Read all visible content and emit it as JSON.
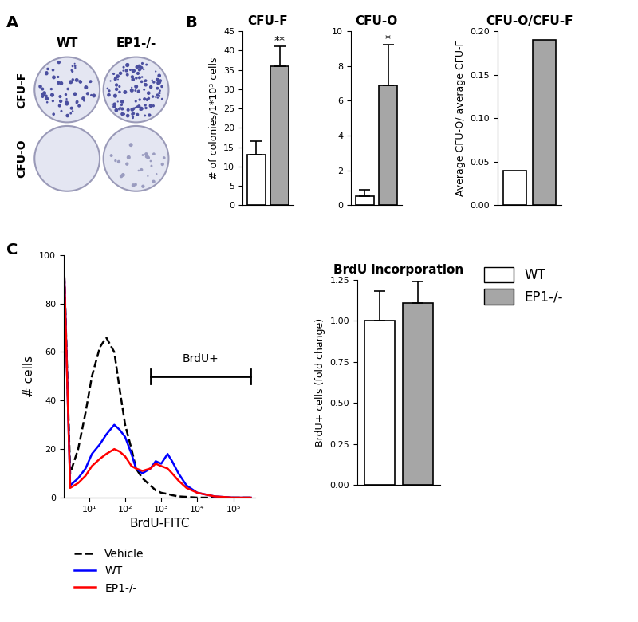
{
  "panel_labels": [
    "A",
    "B",
    "C"
  ],
  "legend_entries": [
    {
      "name": "WT",
      "color": "#ffffff"
    },
    {
      "name": "EP1-/-",
      "color": "#a6a6a6"
    }
  ],
  "image_panel": {
    "columns": [
      "WT",
      "EP1-/-"
    ],
    "rows": [
      "CFU-F",
      "CFU-O"
    ]
  },
  "chart_data": [
    {
      "type": "bar",
      "title": "CFU-F",
      "ylabel": "# of colonies/1*10³ cells",
      "categories": [
        null,
        null
      ],
      "values": [
        13,
        36
      ],
      "errors": [
        3.5,
        5
      ],
      "significance": [
        null,
        "**"
      ],
      "colors": [
        "#ffffff",
        "#a6a6a6"
      ],
      "ylim": [
        0,
        45
      ],
      "yticks": [
        0,
        5,
        10,
        15,
        20,
        25,
        30,
        35,
        40,
        45
      ]
    },
    {
      "type": "bar",
      "title": "CFU-O",
      "categories": [
        null,
        null
      ],
      "values": [
        0.5,
        6.9
      ],
      "errors": [
        0.4,
        2.3
      ],
      "significance": [
        null,
        "*"
      ],
      "colors": [
        "#ffffff",
        "#a6a6a6"
      ],
      "ylim": [
        0,
        10
      ],
      "yticks": [
        0,
        2,
        4,
        6,
        8,
        10
      ]
    },
    {
      "type": "bar",
      "title": "CFU-O/CFU-F",
      "ylabel": "Average CFU-O/ average CFU-F",
      "categories": [
        null,
        null
      ],
      "values": [
        0.04,
        0.19
      ],
      "colors": [
        "#ffffff",
        "#a6a6a6"
      ],
      "ylim": [
        0,
        0.2
      ],
      "yticks": [
        {
          "value": 0,
          "label": "0.00"
        },
        {
          "value": 0.05,
          "label": "0.05"
        },
        {
          "value": 0.1,
          "label": "0.10"
        },
        {
          "value": 0.15,
          "label": "0.15"
        },
        {
          "value": 0.2,
          "label": "0.20"
        }
      ]
    },
    {
      "type": "line",
      "xlabel": "BrdU-FITC",
      "ylabel": "# cells",
      "log": "x",
      "x": [
        2,
        3,
        5,
        8,
        12,
        20,
        30,
        50,
        70,
        100,
        150,
        200,
        300,
        500,
        700,
        1000,
        1500,
        2000,
        3000,
        5000,
        10000,
        30000,
        100000,
        300000
      ],
      "series": [
        {
          "name": "Vehicle",
          "color": "#000000",
          "line_style": "dashed",
          "values": [
            100,
            10,
            20,
            35,
            50,
            62,
            66,
            60,
            45,
            30,
            20,
            12,
            8,
            5,
            3,
            2,
            1.5,
            1,
            0.5,
            0.3,
            0,
            0,
            0,
            0
          ]
        },
        {
          "name": "WT",
          "color": "#0000ff",
          "line_style": "solid",
          "values": [
            100,
            5,
            8,
            12,
            18,
            22,
            26,
            30,
            28,
            25,
            18,
            12,
            10,
            12,
            15,
            14,
            18,
            15,
            10,
            5,
            2,
            0.5,
            0,
            0
          ]
        },
        {
          "name": "EP1-/-",
          "color": "#ff0000",
          "line_style": "solid",
          "values": [
            100,
            4,
            6,
            9,
            13,
            16,
            18,
            20,
            19,
            17,
            13,
            12,
            11,
            12,
            14,
            13,
            12,
            10,
            7,
            4,
            2,
            0.5,
            0,
            0
          ]
        }
      ],
      "xlim": [
        2,
        400000
      ],
      "xticks": [
        {
          "value": 10,
          "label": "10¹"
        },
        {
          "value": 100,
          "label": "10²"
        },
        {
          "value": 1000,
          "label": "10³"
        },
        {
          "value": 10000,
          "label": "10⁴"
        },
        {
          "value": 100000,
          "label": "10⁵"
        }
      ],
      "ylim": [
        0,
        100
      ],
      "yticks": [
        0,
        20,
        40,
        60,
        80,
        100
      ],
      "legend": "upper left",
      "annotations": [
        {
          "text": "BrdU+",
          "x_range": [
            500,
            300000
          ],
          "y": 50
        }
      ]
    },
    {
      "type": "bar",
      "title": "BrdU incorporation",
      "ylabel": "BrdU+ cells (fold change)",
      "categories": [
        null,
        null
      ],
      "values": [
        1.0,
        1.11
      ],
      "errors": [
        0.18,
        0.13
      ],
      "colors": [
        "#ffffff",
        "#a6a6a6"
      ],
      "ylim": [
        0,
        1.25
      ],
      "yticks": [
        {
          "value": 0,
          "label": "0.00"
        },
        {
          "value": 0.25,
          "label": "0.25"
        },
        {
          "value": 0.5,
          "label": "0.50"
        },
        {
          "value": 0.75,
          "label": "0.75"
        },
        {
          "value": 1.0,
          "label": "1.00"
        },
        {
          "value": 1.25,
          "label": "1.25"
        }
      ]
    }
  ]
}
